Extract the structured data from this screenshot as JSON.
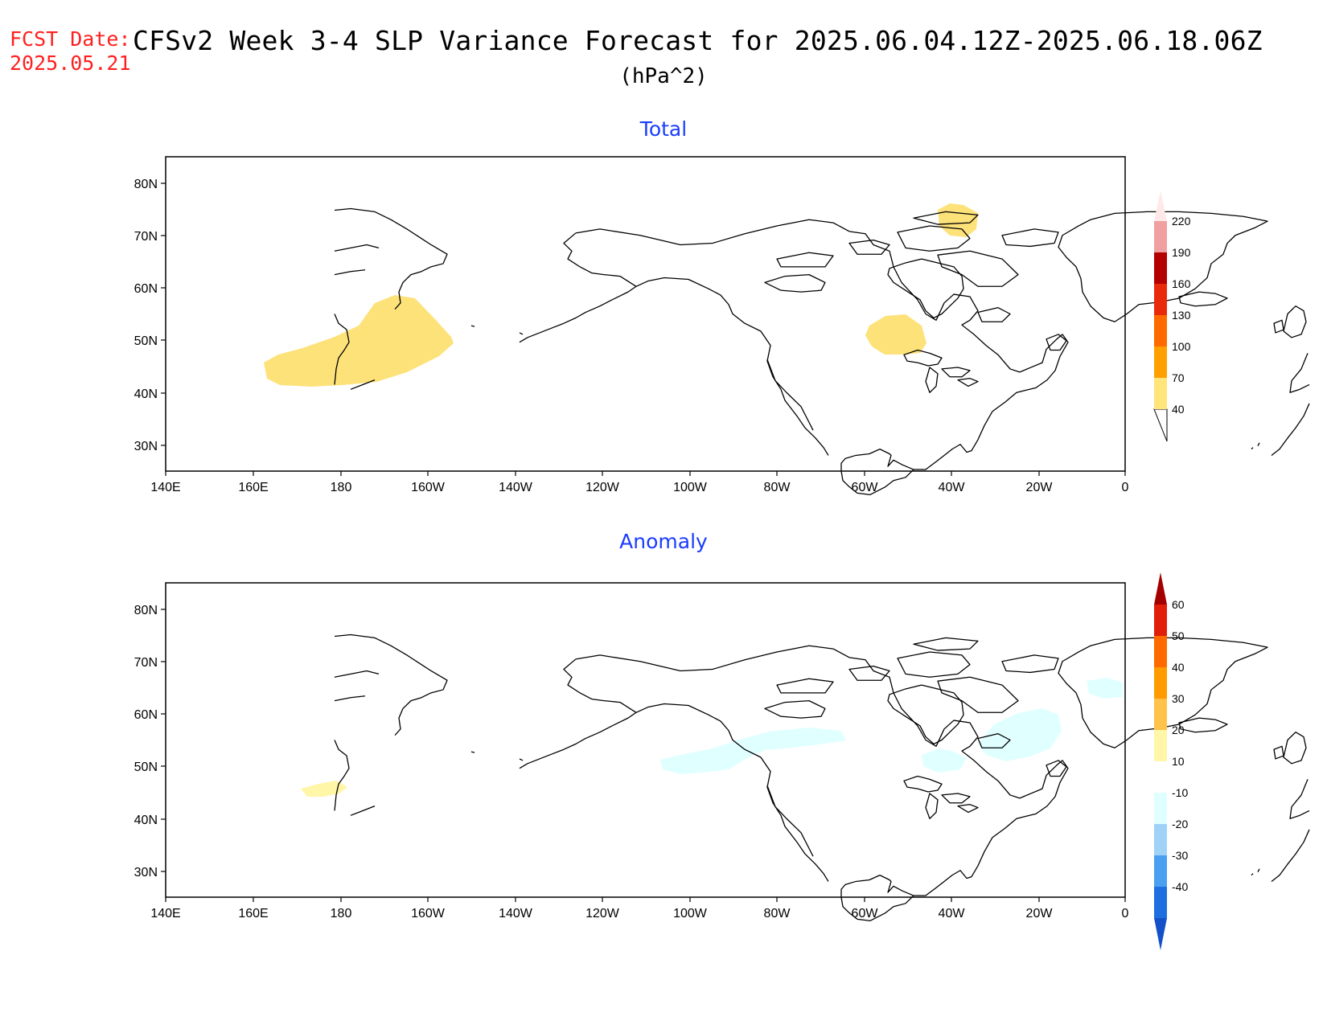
{
  "header": {
    "fcst_label": "FCST Date:",
    "fcst_date": "2025.05.21",
    "title": "CFSv2 Week 3-4 SLP Variance Forecast for 2025.06.04.12Z-2025.06.18.06Z",
    "units": "(hPa^2)"
  },
  "axes": {
    "lon_labels": [
      "140E",
      "160E",
      "180",
      "160W",
      "140W",
      "120W",
      "100W",
      "80W",
      "60W",
      "40W",
      "20W",
      "0"
    ],
    "lat_labels": [
      "80N",
      "70N",
      "60N",
      "50N",
      "40N",
      "30N"
    ],
    "lon_range": [
      "140E",
      "0"
    ],
    "lat_range": [
      25,
      85
    ]
  },
  "panels": [
    {
      "title": "Total",
      "colorbar": {
        "levels": [
          "40",
          "70",
          "100",
          "130",
          "160",
          "190",
          "220"
        ],
        "colors": [
          "#ffe57a",
          "#ffa000",
          "#ff6a00",
          "#e82a0a",
          "#b40000",
          "#f0a0a0",
          "#ffe8e8"
        ]
      },
      "shaded_regions": [
        {
          "label": "North Pacific 40-70",
          "fill": "#fde27a"
        },
        {
          "label": "Newfoundland 40-70",
          "fill": "#fde27a"
        },
        {
          "label": "Greenland 40-70",
          "fill": "#fde27a"
        }
      ]
    },
    {
      "title": "Anomaly",
      "colorbar": {
        "levels": [
          "60",
          "50",
          "40",
          "30",
          "20",
          "10",
          "-10",
          "-20",
          "-30",
          "-40"
        ],
        "colors": [
          "#a40000",
          "#e01e0a",
          "#ff6a00",
          "#ff9a00",
          "#ffc24a",
          "#fff6a8",
          "#ffffff",
          "#e0ffff",
          "#a0d2f8",
          "#4aa0f0",
          "#1e6ee0",
          "#1450c8"
        ]
      },
      "shaded_regions": [
        {
          "label": "Pacific 10-20",
          "fill": "#fff6a8"
        },
        {
          "label": "Hudson Bay -10 to -20",
          "fill": "#e0ffff"
        },
        {
          "label": "North Atlantic -10 to -20",
          "fill": "#e0ffff"
        }
      ]
    }
  ]
}
